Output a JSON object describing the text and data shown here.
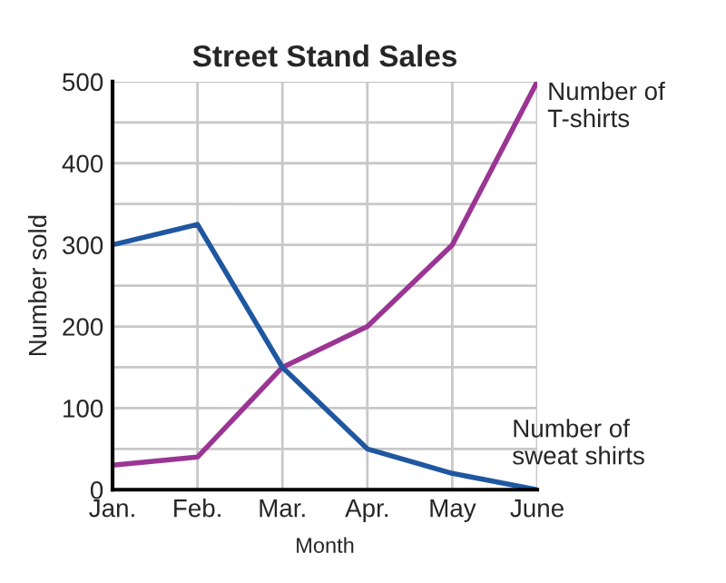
{
  "chart_data": {
    "type": "line",
    "title": "Street Stand Sales",
    "xlabel": "Month",
    "ylabel": "Number sold",
    "categories": [
      "Jan.",
      "Feb.",
      "Mar.",
      "Apr.",
      "May",
      "June"
    ],
    "series": [
      {
        "name": "Number of T-shirts",
        "color": "#9b3594",
        "values": [
          30,
          40,
          150,
          200,
          300,
          500
        ]
      },
      {
        "name": "Number of sweat shirts",
        "color": "#1f57a0",
        "values": [
          300,
          325,
          150,
          50,
          20,
          0
        ]
      }
    ],
    "ylim": [
      0,
      500
    ],
    "yticks": [
      0,
      {
        "value": 50,
        "label": null
      },
      100,
      {
        "value": 150,
        "label": null
      },
      200,
      {
        "value": 250,
        "label": null
      },
      300,
      {
        "value": 350,
        "label": null
      },
      400,
      {
        "value": 450,
        "label": null
      },
      500
    ],
    "grid": true,
    "legend": false,
    "marker": "none",
    "line_style": "solid"
  }
}
